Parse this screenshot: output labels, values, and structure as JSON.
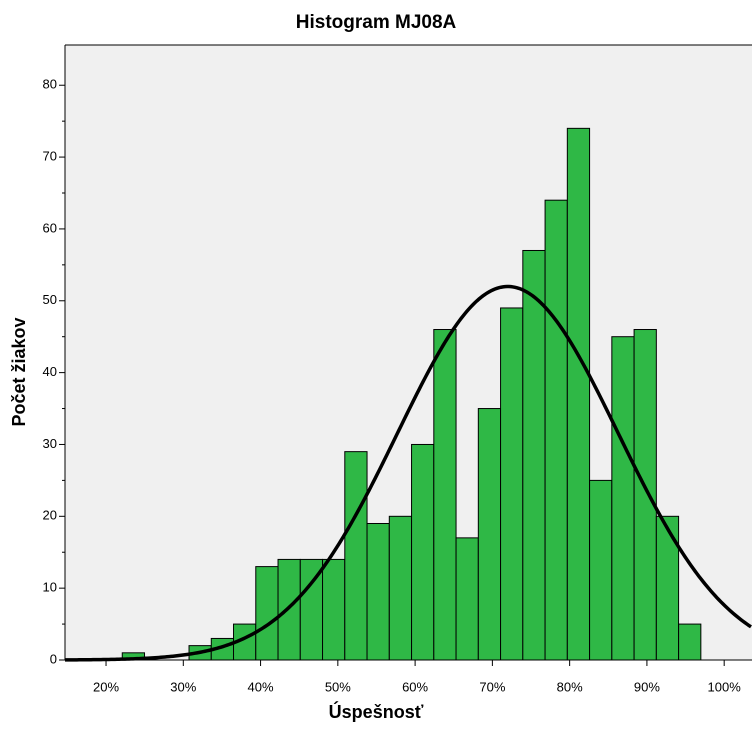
{
  "chart_data": {
    "type": "histogram",
    "title": "Histogram MJ08A",
    "x_label": "Úspešnosť",
    "y_label": "Počet žiakov",
    "bins": [
      22.1,
      24.98,
      27.86,
      30.74,
      33.62,
      36.5,
      39.38,
      42.26,
      45.14,
      48.02,
      50.9,
      53.78,
      56.66,
      59.54,
      62.42,
      65.3,
      68.18,
      71.06,
      73.94,
      76.82,
      79.7,
      82.58,
      85.46,
      88.34,
      91.22,
      94.1,
      96.98
    ],
    "values": [
      1,
      0,
      0,
      2,
      3,
      5,
      13,
      14,
      14,
      14,
      29,
      19,
      20,
      30,
      46,
      17,
      35,
      49,
      57,
      64,
      74,
      25,
      45,
      46,
      20,
      5
    ],
    "color": "#2fb846",
    "normal_curve": {
      "mean": 72,
      "sd": 14.3
    },
    "xlim": [
      14.69,
      103.6
    ],
    "ylim": [
      0,
      85.6
    ],
    "xticks": [
      {
        "value": 20,
        "label": "20%"
      },
      {
        "value": 30,
        "label": "30%"
      },
      {
        "value": 40,
        "label": "40%"
      },
      {
        "value": 50,
        "label": "50%"
      },
      {
        "value": 60,
        "label": "60%"
      },
      {
        "value": 70,
        "label": "70%"
      },
      {
        "value": 80,
        "label": "80%"
      },
      {
        "value": 90,
        "label": "90%"
      },
      {
        "value": 100,
        "label": "100%"
      }
    ],
    "yticks": [
      0,
      10,
      20,
      30,
      40,
      50,
      60,
      70,
      80
    ]
  }
}
